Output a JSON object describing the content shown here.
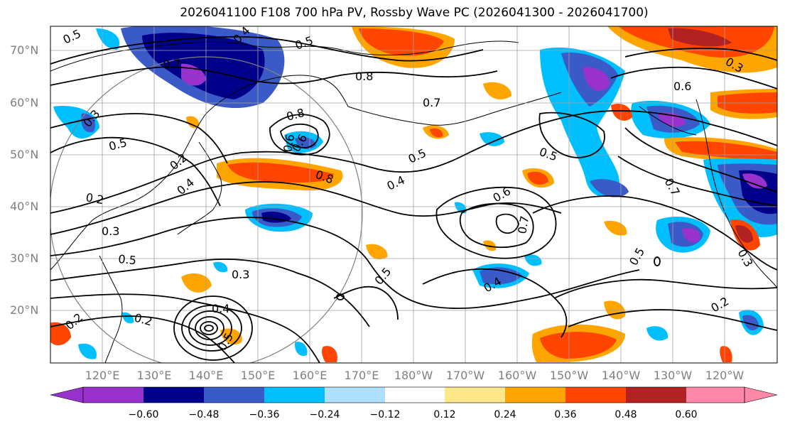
{
  "title": "2026041100 F108 700 hPa PV, Rossby Wave PC (2026041300 - 2026041700)",
  "lat_labels": [
    "70°N",
    "60°N",
    "50°N",
    "40°N",
    "30°N",
    "20°N"
  ],
  "lon_labels": [
    "120°E",
    "130°E",
    "140°E",
    "150°E",
    "160°E",
    "170°E",
    "180°W",
    "170°W",
    "160°W",
    "150°W",
    "140°W",
    "130°W",
    "120°W"
  ],
  "contour_labels": [
    "0.5",
    "0.4",
    "0.7",
    "0.8",
    "0.5",
    "0.3",
    "0.8",
    "0.7",
    "0.6",
    "0.3",
    "0.5",
    "0.2",
    "0.4",
    "0.5",
    "0.7",
    "0.6",
    "0.5",
    "0.4",
    "0.8",
    "0.2",
    "0.3",
    "0.5",
    "0.6",
    "0.7",
    "0.5",
    "0.4",
    "0.3",
    "0.2",
    "0.2",
    "0.4",
    "0.5",
    "0.5",
    "0.2",
    "0.6",
    "0.3"
  ],
  "colorbar": {
    "ticks": [
      "−0.60",
      "−0.48",
      "−0.36",
      "−0.24",
      "−0.12",
      "0.12",
      "0.24",
      "0.36",
      "0.48",
      "0.60"
    ],
    "colors": [
      "#9932cc",
      "#00008b",
      "#3a5bc7",
      "#00bfff",
      "#b0e0ff",
      "#ffffff",
      "#ffe88a",
      "#ffa500",
      "#ff4500",
      "#b22222",
      "#ff88aa"
    ]
  },
  "colors": {
    "neg_strong": "#00008b",
    "neg_mid": "#3a5bc7",
    "neg_light": "#00bfff",
    "neg_purple": "#9932cc",
    "pos_light": "#ffa500",
    "pos_mid": "#ff4500",
    "pos_strong": "#b22222",
    "contour": "#000000",
    "grid": "#a0a0a0"
  }
}
